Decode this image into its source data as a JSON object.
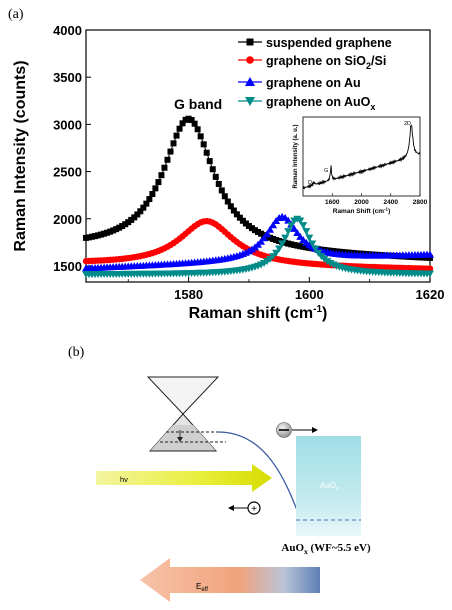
{
  "panel_a_label": "(a)",
  "panel_b_label": "(b)",
  "chart_data": {
    "type": "line",
    "xlabel": "Raman shift (cm",
    "xlabel_sup": "-1",
    "xlabel_tail": ")",
    "ylabel": "Raman Intensity (counts)",
    "xlim": [
      1563,
      1620
    ],
    "ylim": [
      1330,
      4000
    ],
    "xticks": [
      1580,
      1600,
      1620
    ],
    "yticks": [
      1500,
      2000,
      2500,
      3000,
      3500,
      4000
    ],
    "annotation": "G band",
    "legend_position": "top-right",
    "series": [
      {
        "name": "suspended graphene",
        "color": "#000000",
        "marker": "square",
        "peak": 1580,
        "height": 3060,
        "width": 5.2,
        "base": 1620,
        "base_slope": -2.0
      },
      {
        "name": "graphene on SiO",
        "name_sub": "2",
        "name_tail": "/Si",
        "color": "#ff0000",
        "marker": "circle",
        "peak": 1583,
        "height": 1975,
        "width": 5.5,
        "base": 1490,
        "base_slope": -1.0
      },
      {
        "name": "graphene on Au",
        "color": "#0000ff",
        "marker": "triangle-up",
        "peak": 1595.5,
        "height": 2020,
        "width": 3.2,
        "base": 1540,
        "base_slope": 2.5
      },
      {
        "name": "graphene on AuO",
        "name_sub": "x",
        "name_tail": "",
        "color": "#008b8b",
        "marker": "triangle-down",
        "peak": 1598,
        "height": 2000,
        "width": 2.8,
        "base": 1410,
        "base_slope": 0.0
      }
    ],
    "inset": {
      "type": "line",
      "xlabel": "Raman Shift (cm",
      "xlabel_sup": "-1",
      "xlabel_tail": ")",
      "ylabel": "Raman Intensity (a. u.)",
      "xlim": [
        1200,
        2800
      ],
      "xticks": [
        1600,
        2000,
        2400,
        2800
      ],
      "peak_labels": [
        "D",
        "G",
        "2D"
      ]
    }
  },
  "diagram": {
    "hv_label": "hv",
    "auox_box_label": "AuO",
    "auox_box_sub": "x",
    "auox_caption": "AuO",
    "auox_caption_sub": "x",
    "auox_caption_tail": " (WF~5.5 eV)",
    "electron_symbol": "−",
    "hole_symbol": "+",
    "eeff_label": "E",
    "eeff_sub": "eff"
  }
}
